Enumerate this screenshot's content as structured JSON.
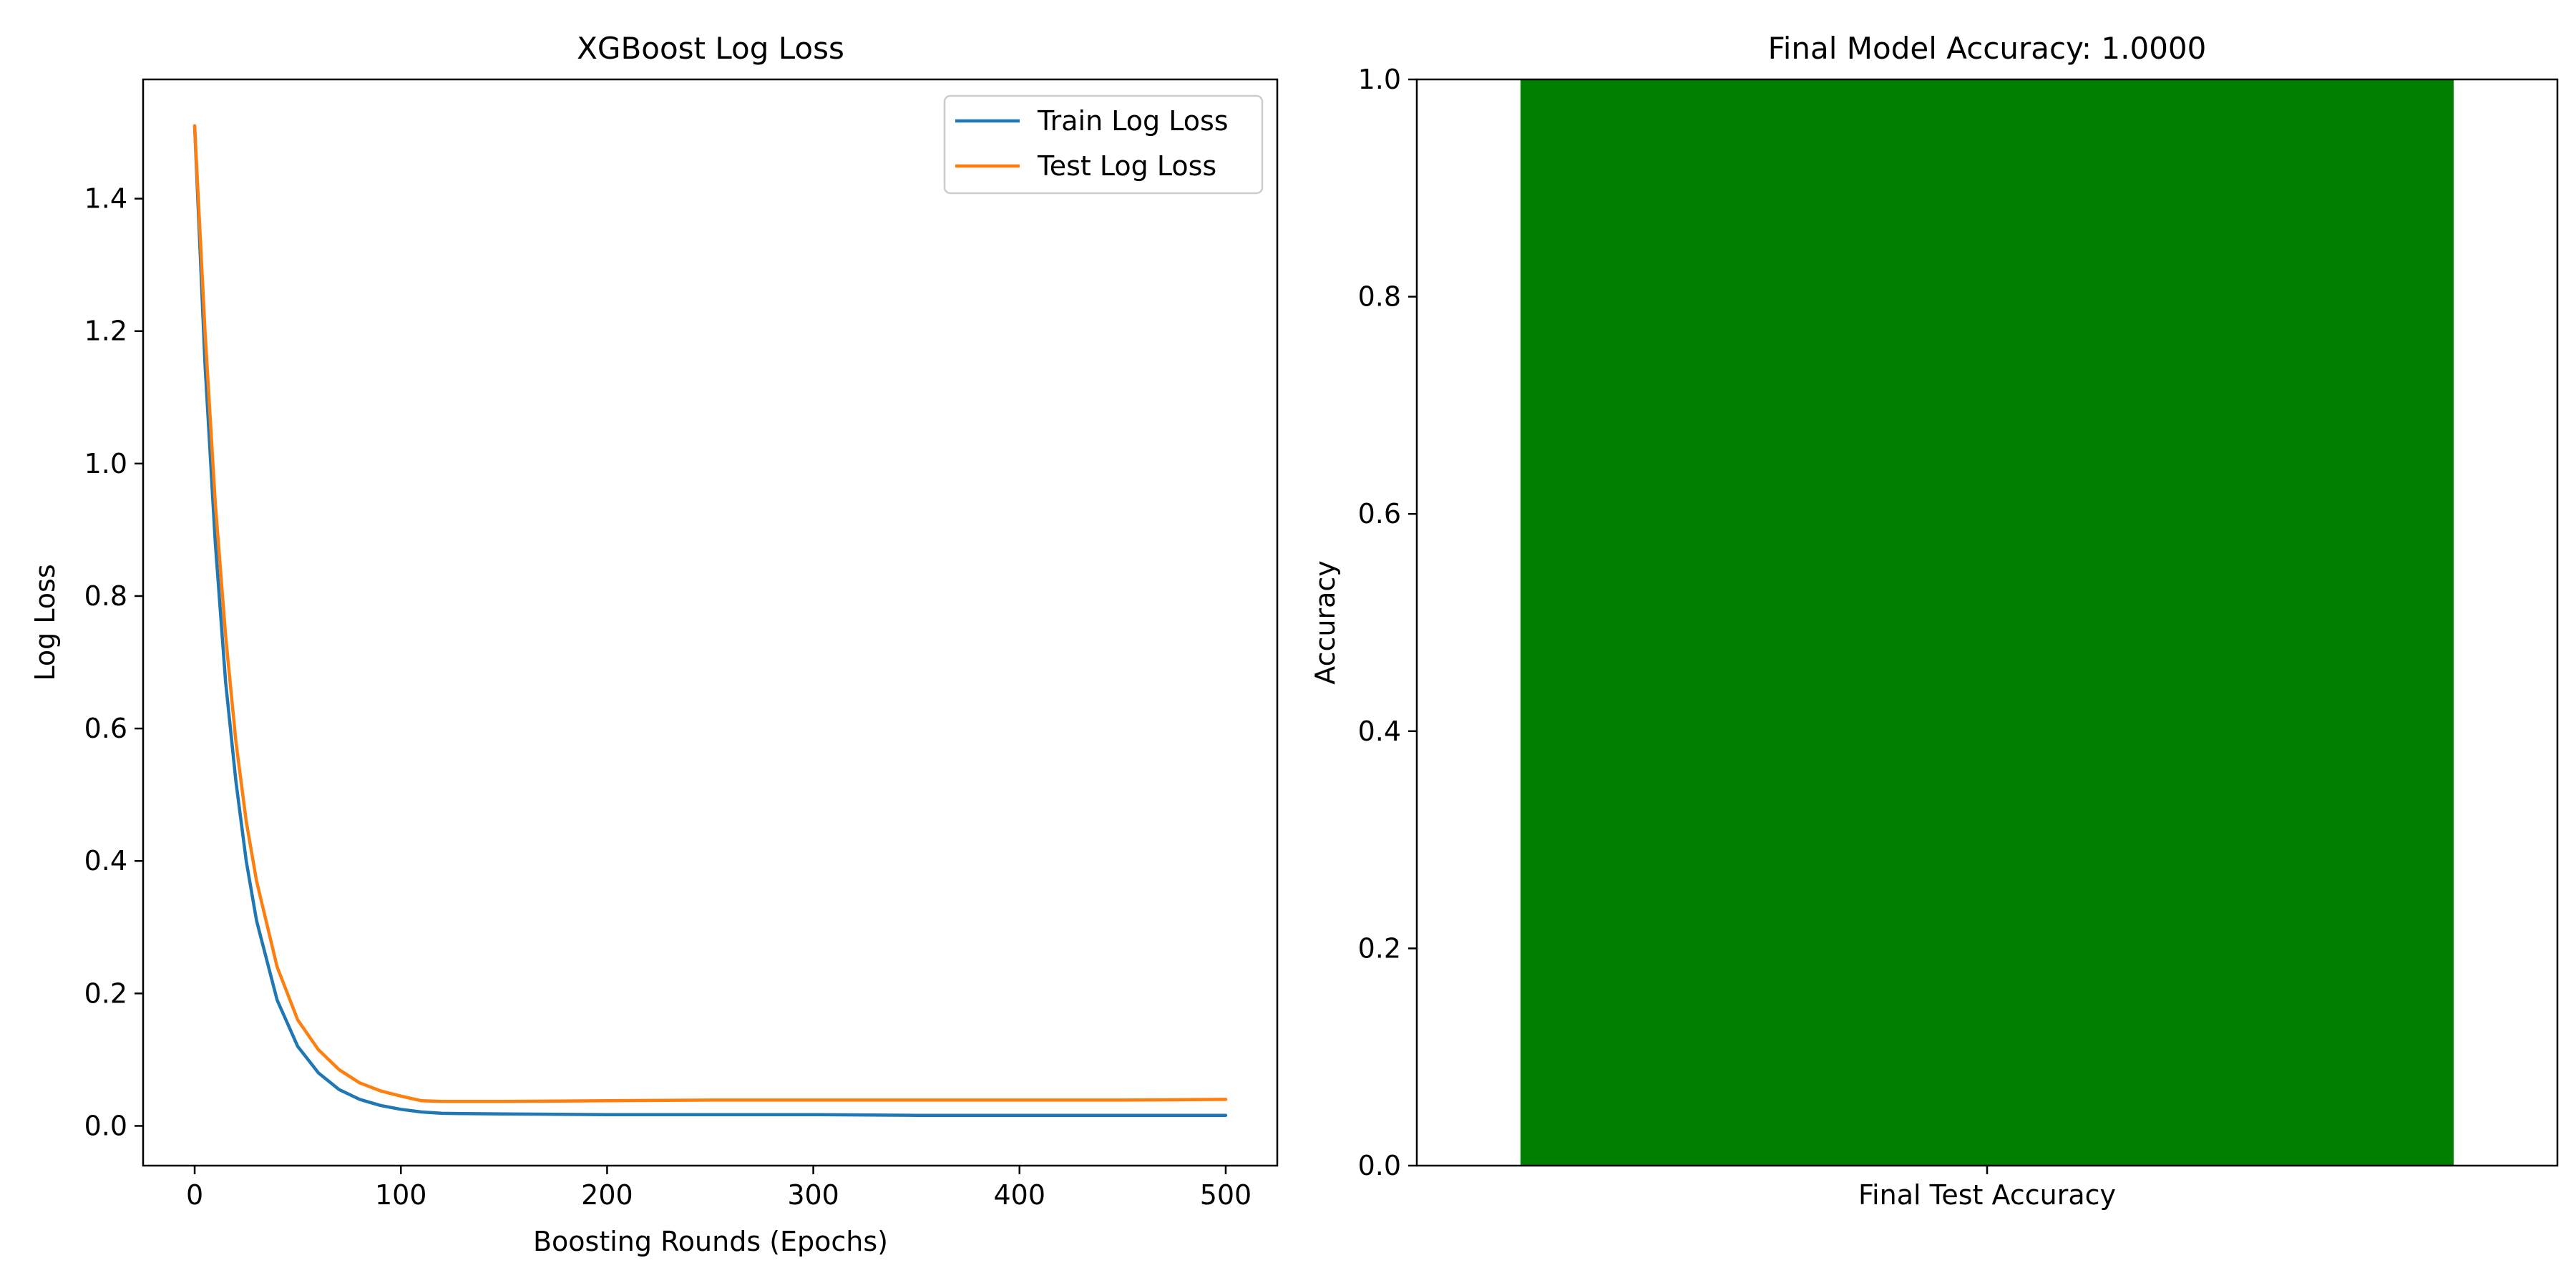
{
  "chart_data": [
    {
      "type": "line",
      "title": "XGBoost Log Loss",
      "xlabel": "Boosting Rounds (Epochs)",
      "ylabel": "Log Loss",
      "xlim": [
        -25,
        525
      ],
      "ylim": [
        -0.06,
        1.58
      ],
      "xticks": [
        0,
        100,
        200,
        300,
        400,
        500
      ],
      "yticks": [
        0.0,
        0.2,
        0.4,
        0.6,
        0.8,
        1.0,
        1.2,
        1.4
      ],
      "ytick_labels": [
        "0.0",
        "0.2",
        "0.4",
        "0.6",
        "0.8",
        "1.0",
        "1.2",
        "1.4"
      ],
      "grid": false,
      "legend": "top-right",
      "x": [
        0,
        5,
        10,
        15,
        20,
        25,
        30,
        40,
        50,
        60,
        70,
        80,
        90,
        100,
        110,
        120,
        150,
        200,
        250,
        300,
        350,
        400,
        450,
        500
      ],
      "series": [
        {
          "name": "Train Log Loss",
          "color": "#1f77b4",
          "values": [
            1.51,
            1.15,
            0.88,
            0.67,
            0.52,
            0.4,
            0.31,
            0.19,
            0.12,
            0.08,
            0.055,
            0.04,
            0.031,
            0.025,
            0.021,
            0.019,
            0.018,
            0.017,
            0.017,
            0.017,
            0.016,
            0.016,
            0.016,
            0.016
          ]
        },
        {
          "name": "Test Log Loss",
          "color": "#ff7f0e",
          "values": [
            1.51,
            1.2,
            0.94,
            0.74,
            0.58,
            0.46,
            0.37,
            0.24,
            0.16,
            0.115,
            0.085,
            0.065,
            0.053,
            0.045,
            0.038,
            0.037,
            0.037,
            0.038,
            0.039,
            0.039,
            0.039,
            0.039,
            0.039,
            0.04
          ]
        }
      ]
    },
    {
      "type": "bar",
      "title": "Final Model Accuracy: 1.0000",
      "xlabel": "",
      "ylabel": "Accuracy",
      "ylim": [
        0,
        1
      ],
      "yticks": [
        0.0,
        0.2,
        0.4,
        0.6,
        0.8,
        1.0
      ],
      "ytick_labels": [
        "0.0",
        "0.2",
        "0.4",
        "0.6",
        "0.8",
        "1.0"
      ],
      "grid": false,
      "categories": [
        "Final Test Accuracy"
      ],
      "values": [
        1.0
      ],
      "color": "#008000"
    }
  ]
}
